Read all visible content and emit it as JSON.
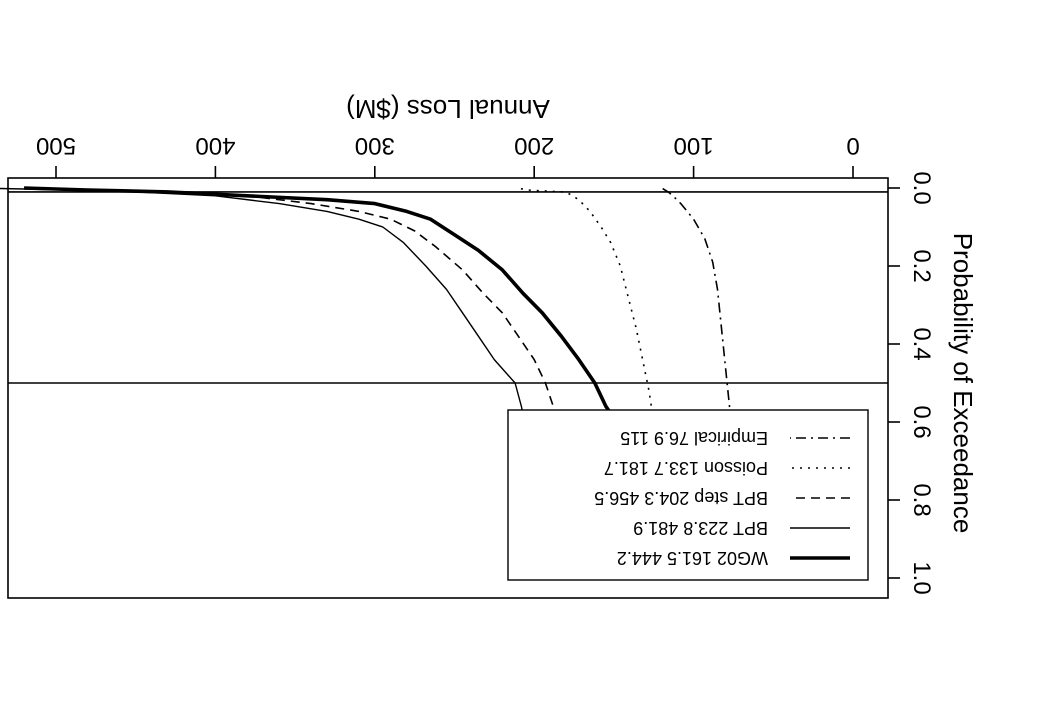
{
  "chart_data": {
    "type": "line",
    "orientation": "rotated 180 degrees (drawn upside-down)",
    "xlabel": "Annual Loss ($M)",
    "ylabel": "Probability of Exceedance",
    "xlim": [
      0,
      500
    ],
    "ylim": [
      0,
      1
    ],
    "x_ticks": [
      "0",
      "100",
      "200",
      "300",
      "400",
      "500"
    ],
    "y_ticks": [
      "0.0",
      "0.2",
      "0.4",
      "0.6",
      "0.8",
      "1.0"
    ],
    "reference_lines_probability": [
      0.01,
      0.5
    ],
    "legend_position": "lower-right",
    "grid": false,
    "series": [
      {
        "name": "WG02",
        "legend_label": "WG02  161.5 444.2",
        "style": "thick-solid",
        "points": [
          [
            40,
            1.0
          ],
          [
            55,
            0.99
          ],
          [
            70,
            0.96
          ],
          [
            85,
            0.92
          ],
          [
            98,
            0.86
          ],
          [
            110,
            0.8
          ],
          [
            120,
            0.74
          ],
          [
            128,
            0.7
          ],
          [
            135,
            0.66
          ],
          [
            145,
            0.62
          ],
          [
            155,
            0.56
          ],
          [
            162,
            0.5
          ],
          [
            172,
            0.44
          ],
          [
            183,
            0.38
          ],
          [
            195,
            0.32
          ],
          [
            207,
            0.27
          ],
          [
            220,
            0.21
          ],
          [
            235,
            0.16
          ],
          [
            250,
            0.12
          ],
          [
            265,
            0.08
          ],
          [
            280,
            0.06
          ],
          [
            300,
            0.04
          ],
          [
            330,
            0.03
          ],
          [
            380,
            0.02
          ],
          [
            430,
            0.01
          ],
          [
            480,
            0.005
          ],
          [
            520,
            0.0
          ]
        ]
      },
      {
        "name": "BPT",
        "legend_label": "BPT  223.8 481.9",
        "style": "thin-solid",
        "points": [
          [
            115,
            1.0
          ],
          [
            130,
            0.98
          ],
          [
            140,
            0.96
          ],
          [
            150,
            0.92
          ],
          [
            158,
            0.87
          ],
          [
            165,
            0.82
          ],
          [
            175,
            0.77
          ],
          [
            185,
            0.73
          ],
          [
            198,
            0.68
          ],
          [
            205,
            0.62
          ],
          [
            208,
            0.56
          ],
          [
            212,
            0.5
          ],
          [
            225,
            0.44
          ],
          [
            235,
            0.38
          ],
          [
            245,
            0.32
          ],
          [
            255,
            0.26
          ],
          [
            268,
            0.2
          ],
          [
            282,
            0.14
          ],
          [
            295,
            0.1
          ],
          [
            310,
            0.08
          ],
          [
            330,
            0.06
          ],
          [
            360,
            0.04
          ],
          [
            400,
            0.02
          ],
          [
            450,
            0.01
          ],
          [
            490,
            0.005
          ],
          [
            550,
            0.0
          ]
        ]
      },
      {
        "name": "BPT step",
        "legend_label": "BPT step  204.3 456.5",
        "style": "dashed",
        "points": [
          [
            80,
            1.0
          ],
          [
            110,
            0.99
          ],
          [
            130,
            0.96
          ],
          [
            140,
            0.93
          ],
          [
            150,
            0.88
          ],
          [
            158,
            0.83
          ],
          [
            165,
            0.78
          ],
          [
            175,
            0.73
          ],
          [
            182,
            0.68
          ],
          [
            185,
            0.62
          ],
          [
            188,
            0.56
          ],
          [
            193,
            0.5
          ],
          [
            200,
            0.44
          ],
          [
            210,
            0.38
          ],
          [
            220,
            0.32
          ],
          [
            232,
            0.27
          ],
          [
            245,
            0.21
          ],
          [
            262,
            0.15
          ],
          [
            275,
            0.11
          ],
          [
            290,
            0.08
          ],
          [
            310,
            0.06
          ],
          [
            340,
            0.04
          ],
          [
            380,
            0.02
          ],
          [
            430,
            0.01
          ],
          [
            480,
            0.005
          ],
          [
            520,
            0.0
          ]
        ]
      },
      {
        "name": "Poisson",
        "legend_label": "Poisson  133.7 181.7",
        "style": "dotted",
        "points": [
          [
            95,
            1.0
          ],
          [
            102,
            0.98
          ],
          [
            108,
            0.94
          ],
          [
            112,
            0.88
          ],
          [
            115,
            0.82
          ],
          [
            118,
            0.76
          ],
          [
            122,
            0.68
          ],
          [
            125,
            0.6
          ],
          [
            128,
            0.52
          ],
          [
            132,
            0.44
          ],
          [
            136,
            0.36
          ],
          [
            141,
            0.28
          ],
          [
            146,
            0.2
          ],
          [
            152,
            0.14
          ],
          [
            158,
            0.1
          ],
          [
            165,
            0.06
          ],
          [
            172,
            0.03
          ],
          [
            178,
            0.015
          ],
          [
            182,
            0.01
          ],
          [
            205,
            0.005
          ],
          [
            210,
            0.0
          ]
        ]
      },
      {
        "name": "Empirical",
        "legend_label": "Empirical  76.9 115",
        "style": "dash-dot",
        "points": [
          [
            40,
            1.0
          ],
          [
            50,
            0.98
          ],
          [
            58,
            0.95
          ],
          [
            64,
            0.9
          ],
          [
            69,
            0.84
          ],
          [
            72,
            0.78
          ],
          [
            74,
            0.72
          ],
          [
            75,
            0.65
          ],
          [
            77,
            0.58
          ],
          [
            79,
            0.5
          ],
          [
            81,
            0.42
          ],
          [
            83,
            0.34
          ],
          [
            85,
            0.26
          ],
          [
            88,
            0.19
          ],
          [
            93,
            0.13
          ],
          [
            100,
            0.08
          ],
          [
            108,
            0.04
          ],
          [
            113,
            0.02
          ],
          [
            116,
            0.01
          ],
          [
            120,
            0.0
          ]
        ]
      }
    ]
  }
}
